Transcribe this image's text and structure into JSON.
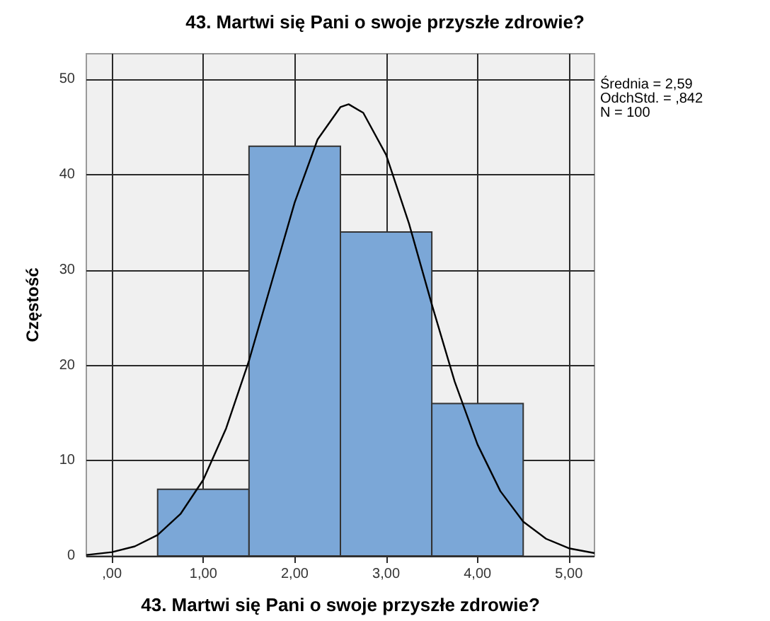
{
  "chart_data": {
    "type": "histogram",
    "title": "43. Martwi się Pani o swoje przyszłe zdrowie?",
    "xlabel": "43. Martwi się Pani o swoje przyszłe zdrowie?",
    "ylabel": "Częstość",
    "annotations": [
      "Średnia = 2,59",
      "OdchStd. = ,842",
      "N = 100"
    ],
    "series": [
      {
        "color": "#7ba7d7",
        "bins": [
          0.5,
          1.5,
          2.5,
          3.5,
          4.5
        ],
        "values": [
          7,
          43,
          34,
          16
        ]
      },
      {
        "type": "line",
        "color": "#000000",
        "marker": "none",
        "x": [
          -0.28,
          0,
          0.25,
          0.5,
          0.75,
          1,
          1.25,
          1.5,
          1.75,
          2,
          2.25,
          2.5,
          2.59,
          2.75,
          3,
          3.25,
          3.5,
          3.75,
          4,
          4.25,
          4.5,
          4.75,
          5,
          5.28
        ],
        "values": [
          0.1,
          0.4,
          1,
          2.2,
          4.4,
          8,
          13.4,
          20.5,
          28.8,
          37.1,
          43.7,
          47.1,
          47.4,
          46.5,
          42.1,
          34.9,
          26.4,
          18.3,
          11.7,
          6.8,
          3.6,
          1.8,
          0.8,
          0.3
        ]
      }
    ],
    "xlim": [
      -0.28,
      5.28
    ],
    "xticks": [
      {
        "value": 0,
        "label": ",00"
      },
      {
        "value": 1,
        "label": "1,00"
      },
      {
        "value": 2,
        "label": "2,00"
      },
      {
        "value": 3,
        "label": "3,00"
      },
      {
        "value": 4,
        "label": "4,00"
      },
      {
        "value": 5,
        "label": "5,00"
      }
    ],
    "ylim": [
      0,
      52.7
    ],
    "yticks": [
      0,
      10,
      20,
      30,
      40,
      50
    ],
    "grid": true
  }
}
